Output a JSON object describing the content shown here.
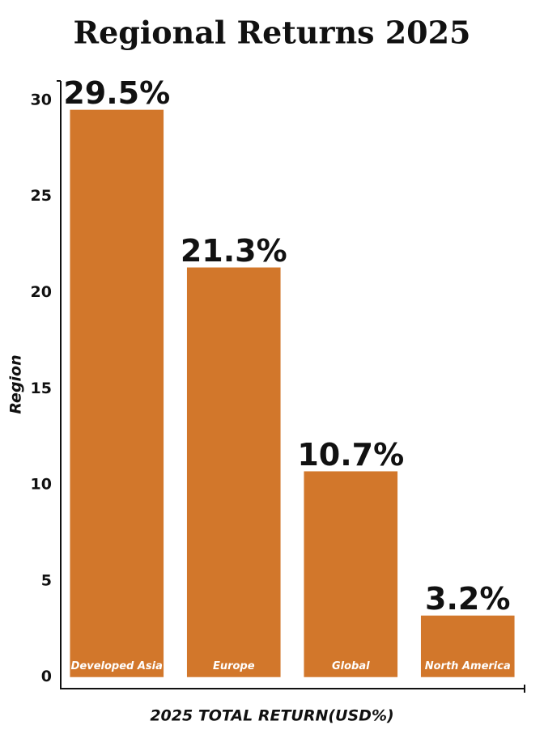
{
  "chart_data": {
    "type": "bar",
    "title": "Regional Returns 2025",
    "x_label": "2025 TOTAL RETURN(USD%)",
    "y_label": "Region",
    "categories": [
      "Developed Asia",
      "Europe",
      "Global",
      "North America"
    ],
    "values": [
      29.5,
      21.3,
      10.7,
      3.2
    ],
    "value_labels": [
      "29.5%",
      "21.3%",
      "10.7%",
      "3.2%"
    ],
    "color": "#d2772b",
    "ylim": [
      -0.6,
      31
    ],
    "yticks": [
      0,
      5,
      10,
      15,
      20,
      25,
      30
    ],
    "grid": false
  }
}
